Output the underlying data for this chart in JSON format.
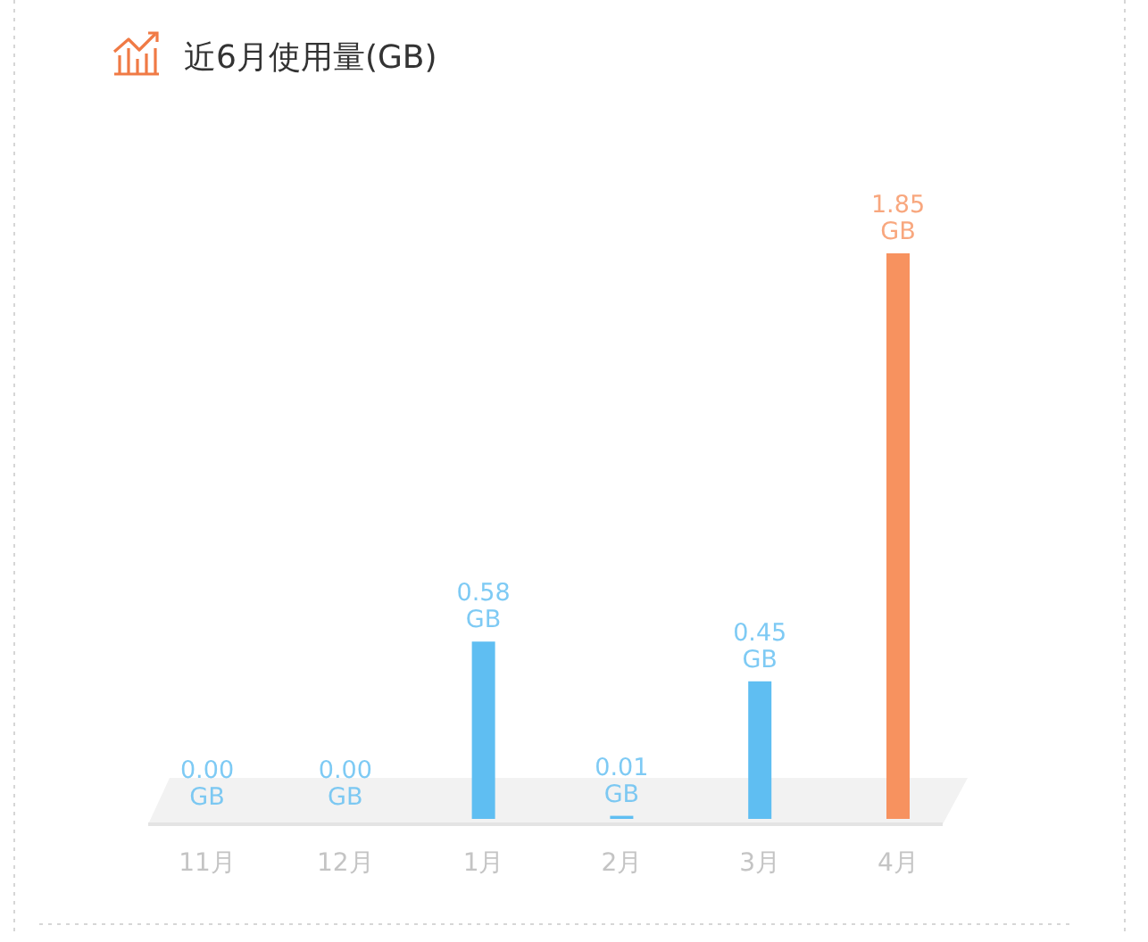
{
  "chart_data": {
    "type": "bar",
    "title": "近6月使用量(GB)",
    "categories": [
      "11月",
      "12月",
      "1月",
      "2月",
      "3月",
      "4月"
    ],
    "values": [
      0,
      0,
      0.58,
      0.01,
      0.45,
      1.85
    ],
    "colors": [
      "#5fbef2",
      "#5fbef2",
      "#5fbef2",
      "#5fbef2",
      "#5fbef2",
      "#f7925f"
    ],
    "value_labels": [
      "0.00 GB",
      "0.00 GB",
      "0.58 GB",
      "0.01 GB",
      "0.45 GB",
      "1.85 GB"
    ],
    "tick_labels": "x"
  }
}
